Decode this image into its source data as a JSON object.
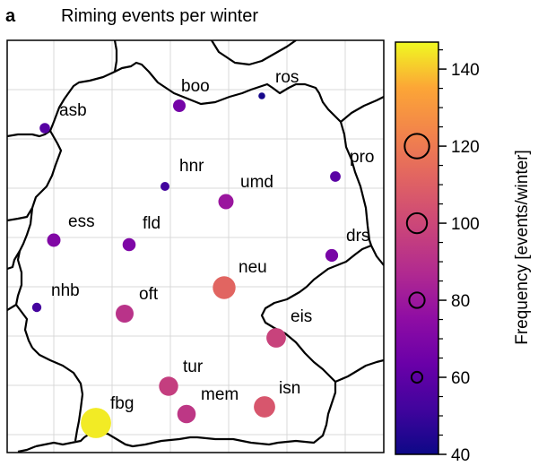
{
  "panel_label": "a",
  "title": "Riming events per winter",
  "colorbar": {
    "label": "Frequency [events/winter]",
    "min": 40,
    "max": 147,
    "ticks": [
      40,
      60,
      80,
      100,
      120,
      140
    ],
    "tick_labels": [
      "40",
      "60",
      "80",
      "100",
      "120",
      "140"
    ],
    "size_legend": [
      60,
      80,
      100,
      120
    ],
    "colormap": "plasma"
  },
  "chart_data": {
    "type": "scatter",
    "title": "Riming events per winter",
    "encoding": "marker color and size = riming events per winter",
    "stations": [
      {
        "name": "ros",
        "value": 42
      },
      {
        "name": "boo",
        "value": 67
      },
      {
        "name": "asb",
        "value": 58
      },
      {
        "name": "pro",
        "value": 59
      },
      {
        "name": "hnr",
        "value": 52
      },
      {
        "name": "umd",
        "value": 79
      },
      {
        "name": "ess",
        "value": 71
      },
      {
        "name": "fld",
        "value": 70
      },
      {
        "name": "drs",
        "value": 68
      },
      {
        "name": "neu",
        "value": 112
      },
      {
        "name": "nhb",
        "value": 53
      },
      {
        "name": "oft",
        "value": 91
      },
      {
        "name": "eis",
        "value": 98
      },
      {
        "name": "tur",
        "value": 96
      },
      {
        "name": "isn",
        "value": 106
      },
      {
        "name": "mem",
        "value": 93
      },
      {
        "name": "fbg",
        "value": 145
      }
    ]
  }
}
